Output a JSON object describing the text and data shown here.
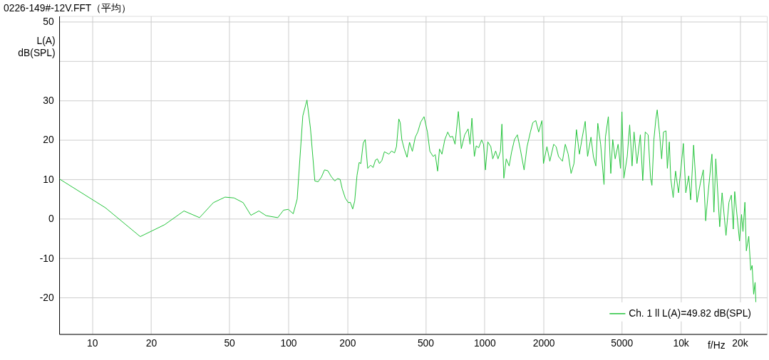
{
  "chart_data": {
    "type": "line",
    "title": "0226-149#-12V.FFT（平均）",
    "xlabel": "f/Hz",
    "ylabel": "L(A)\ndB(SPL)",
    "log": "x",
    "grid": true,
    "legend": "bottom right",
    "xlim": [
      6.8,
      27500
    ],
    "ylim": [
      -29.2,
      51.4
    ],
    "xticks": [
      10,
      20,
      50,
      100,
      200,
      500,
      1000,
      2000,
      5000,
      {
        "value": 10000,
        "label": "10k"
      },
      {
        "value": 20000,
        "label": "20k"
      }
    ],
    "yticks": [
      -20,
      -10,
      0,
      10,
      20,
      30,
      {
        "value": 40,
        "label": null
      },
      50
    ],
    "x": [
      6.82,
      11.7,
      17.6,
      23.4,
      29.4,
      35.3,
      41.5,
      47.6,
      52.9,
      58.9,
      64.5,
      70.8,
      77.1,
      88.4,
      94.6,
      100,
      106,
      111,
      118.6,
      124.5,
      129.7,
      136.6,
      142,
      147.6,
      153,
      159,
      165.6,
      172.5,
      178.5,
      183.7,
      188.4,
      195.5,
      202.4,
      207,
      213,
      218,
      224,
      229.8,
      234.4,
      241,
      246.7,
      254,
      263,
      270.5,
      278.3,
      284.5,
      291.5,
      300,
      309,
      326,
      336,
      348,
      356,
      366,
      372,
      379,
      390,
      403,
      415,
      429,
      444,
      457,
      473,
      492,
      512,
      527,
      548,
      561,
      577,
      590,
      607,
      628,
      650,
      668,
      688,
      708,
      736,
      762,
      793,
      825,
      844,
      863,
      888,
      908,
      934,
      967,
      989,
      1011,
      1040,
      1077,
      1102,
      1140,
      1172,
      1206,
      1227,
      1255,
      1291,
      1336,
      1374,
      1422,
      1471,
      1522,
      1592,
      1648,
      1714,
      1764,
      1826,
      1889,
      1963,
      1998,
      2081,
      2153,
      2253,
      2318,
      2385,
      2496,
      2581,
      2671,
      2763,
      2858,
      2943,
      3047,
      3151,
      3261,
      3353,
      3490,
      3590,
      3694,
      3780,
      3908,
      4067,
      4134,
      4278,
      4403,
      4505,
      4636,
      4798,
      4935,
      5017,
      5134,
      5340,
      5495,
      5653,
      5785,
      5985,
      6228,
      6407,
      6596,
      6826,
      7021,
      7136,
      7303,
      7473,
      7592,
      7815,
      7996,
      8175,
      8412,
      8552,
      8752,
      8897,
      9157,
      9418,
      9746,
      10140,
      10320,
      10620,
      10990,
      11240,
      11640,
      12110,
      12600,
      13040,
      13410,
      13800,
      14430,
      14770,
      15100,
      15810,
      16260,
      17020,
      17620,
      18120,
      18540,
      18850,
      19950,
      20420,
      20770,
      21250,
      21610,
      22230,
      22750,
      23130,
      23550,
      23950,
      24160
    ],
    "series": [
      {
        "name": "Ch. 1 ll L(A)=49.82 dB(SPL)",
        "color": "#22c33a",
        "values": [
          10.1,
          2.8,
          -4.5,
          -1.5,
          2.0,
          0.3,
          4.1,
          5.5,
          5.3,
          4.1,
          0.9,
          2.0,
          0.8,
          0.3,
          2.2,
          2.4,
          1.3,
          5.0,
          26.1,
          30.1,
          23.0,
          9.6,
          9.4,
          10.6,
          12.4,
          12.2,
          10.7,
          9.6,
          10.2,
          10.0,
          7.6,
          5.2,
          4.1,
          4.2,
          2.5,
          4.5,
          11.0,
          14.3,
          14.0,
          19.2,
          20.1,
          12.8,
          13.6,
          13.0,
          14.9,
          15.2,
          14.0,
          14.8,
          17.0,
          16.4,
          17.2,
          16.7,
          18.3,
          25.3,
          24.4,
          20.1,
          17.7,
          15.6,
          19.4,
          17.1,
          20.7,
          22.0,
          24.5,
          25.9,
          22.0,
          17.1,
          15.8,
          16.3,
          12.1,
          17.7,
          16.4,
          20.1,
          22.0,
          20.7,
          20.9,
          18.9,
          27.2,
          17.8,
          21.3,
          22.8,
          18.9,
          25.5,
          15.8,
          18.5,
          18.0,
          20.0,
          18.9,
          12.4,
          19.5,
          18.3,
          15.2,
          17.2,
          15.2,
          17.1,
          24.0,
          10.3,
          15.2,
          13.4,
          16.9,
          20.1,
          21.3,
          17.7,
          12.4,
          18.3,
          22.0,
          24.4,
          24.9,
          22.0,
          24.9,
          14.0,
          18.3,
          14.6,
          18.9,
          18.3,
          15.8,
          14.6,
          18.9,
          16.4,
          11.5,
          14.0,
          22.6,
          16.4,
          20.7,
          24.7,
          15.8,
          20.7,
          15.8,
          13.4,
          24.2,
          18.9,
          8.7,
          20.7,
          25.9,
          11.5,
          20.1,
          15.2,
          18.9,
          12.8,
          27.1,
          10.3,
          15.8,
          23.8,
          13.4,
          22.0,
          14.0,
          21.3,
          9.7,
          22.0,
          21.3,
          10.3,
          8.5,
          20.1,
          25.3,
          27.6,
          21.3,
          15.2,
          22.0,
          22.3,
          12.8,
          19.5,
          10.3,
          5.4,
          12.1,
          6.6,
          15.2,
          19.1,
          6.6,
          10.9,
          4.8,
          18.7,
          4.2,
          9.1,
          12.4,
          -0.5,
          6.6,
          16.4,
          1.7,
          15.2,
          -2.0,
          6.6,
          -4.2,
          4.2,
          6.0,
          -2.6,
          6.9,
          -5.6,
          1.1,
          -3.2,
          4.2,
          -8.1,
          -4.4,
          -13.0,
          -11.8,
          -19.1,
          -16.1,
          -21.1
        ]
      }
    ]
  }
}
